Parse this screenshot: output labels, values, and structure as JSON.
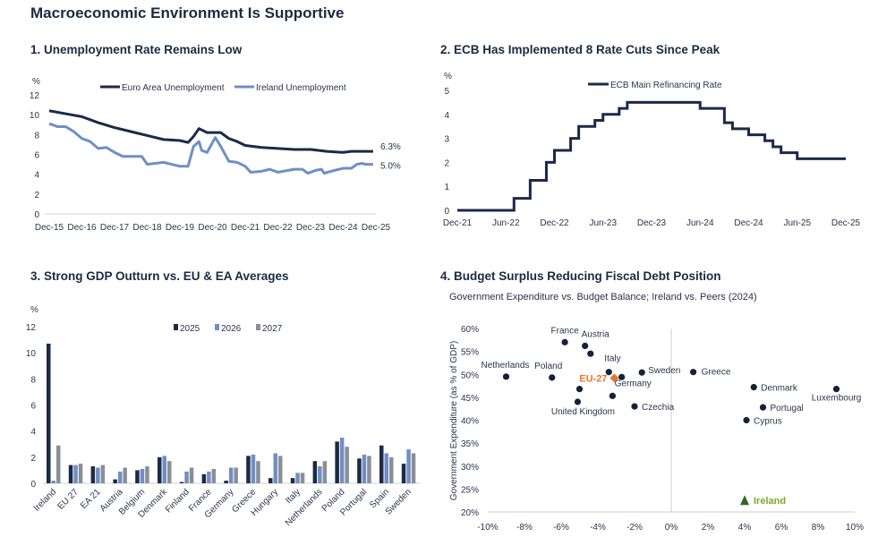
{
  "page_title": "Macroeconomic Environment Is Supportive",
  "colors": {
    "navy": "#1b2a47",
    "light_blue": "#6f8fc4",
    "grey": "#8a8f96",
    "orange": "#e8772e",
    "green": "#2e6b1f",
    "ireland_label": "#7aaa2e"
  },
  "chart_data": [
    {
      "type": "line",
      "title": "1. Unemployment Rate Remains Low",
      "ylabel": "%",
      "ylim": [
        0,
        12
      ],
      "yticks": [
        "0",
        "2",
        "4",
        "6",
        "8",
        "10",
        "12"
      ],
      "xticks": [
        "Dec-15",
        "Dec-16",
        "Dec-17",
        "Dec-18",
        "Dec-19",
        "Dec-20",
        "Dec-21",
        "Dec-22",
        "Dec-23",
        "Dec-24",
        "Dec-25"
      ],
      "legend": "top",
      "series": [
        {
          "name": "Euro Area Unemployment",
          "color": "#1b2a47",
          "end_label": "6.3%",
          "points": [
            [
              "2015-12",
              10.4
            ],
            [
              "2016-06",
              10.1
            ],
            [
              "2016-12",
              9.8
            ],
            [
              "2017-06",
              9.2
            ],
            [
              "2017-12",
              8.7
            ],
            [
              "2018-06",
              8.3
            ],
            [
              "2018-12",
              7.9
            ],
            [
              "2019-06",
              7.5
            ],
            [
              "2019-12",
              7.4
            ],
            [
              "2020-03",
              7.2
            ],
            [
              "2020-05",
              7.8
            ],
            [
              "2020-07",
              8.6
            ],
            [
              "2020-10",
              8.2
            ],
            [
              "2021-03",
              8.2
            ],
            [
              "2021-06",
              7.6
            ],
            [
              "2021-09",
              7.3
            ],
            [
              "2021-12",
              6.9
            ],
            [
              "2022-06",
              6.7
            ],
            [
              "2022-12",
              6.6
            ],
            [
              "2023-06",
              6.5
            ],
            [
              "2023-12",
              6.5
            ],
            [
              "2024-06",
              6.3
            ],
            [
              "2024-12",
              6.2
            ],
            [
              "2025-03",
              6.3
            ],
            [
              "2025-11",
              6.3
            ]
          ]
        },
        {
          "name": "Ireland Unemployment",
          "color": "#6f8fc4",
          "end_label": "5.0%",
          "points": [
            [
              "2015-12",
              9.1
            ],
            [
              "2016-03",
              8.8
            ],
            [
              "2016-06",
              8.8
            ],
            [
              "2016-09",
              8.3
            ],
            [
              "2016-12",
              7.6
            ],
            [
              "2017-03",
              7.3
            ],
            [
              "2017-06",
              6.6
            ],
            [
              "2017-09",
              6.7
            ],
            [
              "2017-12",
              6.2
            ],
            [
              "2018-03",
              5.8
            ],
            [
              "2018-06",
              5.8
            ],
            [
              "2018-10",
              5.8
            ],
            [
              "2018-12",
              5.0
            ],
            [
              "2019-06",
              5.2
            ],
            [
              "2019-12",
              4.8
            ],
            [
              "2020-03",
              4.8
            ],
            [
              "2020-05",
              6.8
            ],
            [
              "2020-07",
              7.3
            ],
            [
              "2020-08",
              6.4
            ],
            [
              "2020-10",
              6.2
            ],
            [
              "2021-01",
              7.7
            ],
            [
              "2021-03",
              6.8
            ],
            [
              "2021-06",
              5.3
            ],
            [
              "2021-09",
              5.2
            ],
            [
              "2021-12",
              4.8
            ],
            [
              "2022-02",
              4.2
            ],
            [
              "2022-06",
              4.3
            ],
            [
              "2022-09",
              4.5
            ],
            [
              "2022-12",
              4.2
            ],
            [
              "2023-06",
              4.5
            ],
            [
              "2023-09",
              4.5
            ],
            [
              "2023-11",
              4.1
            ],
            [
              "2024-02",
              4.4
            ],
            [
              "2024-04",
              4.5
            ],
            [
              "2024-05",
              4.1
            ],
            [
              "2024-09",
              4.4
            ],
            [
              "2024-12",
              4.6
            ],
            [
              "2025-03",
              4.6
            ],
            [
              "2025-05",
              5.0
            ],
            [
              "2025-07",
              5.1
            ],
            [
              "2025-08",
              5.0
            ],
            [
              "2025-11",
              5.0
            ]
          ]
        }
      ]
    },
    {
      "type": "line",
      "title": "2. ECB Has Implemented 8 Rate Cuts Since Peak",
      "ylabel": "%",
      "ylim": [
        0,
        5
      ],
      "yticks": [
        "0",
        "1",
        "2",
        "3",
        "4",
        "5"
      ],
      "xticks": [
        "Dec-21",
        "Jun-22",
        "Dec-22",
        "Jun-23",
        "Dec-23",
        "Jun-24",
        "Dec-24",
        "Jun-25",
        "Dec-25"
      ],
      "legend": "top",
      "series": [
        {
          "name": "ECB Main Refinancing Rate",
          "color": "#1b2a47",
          "step": true,
          "points": [
            [
              "2021-12",
              0
            ],
            [
              "2022-07",
              0.5
            ],
            [
              "2022-09",
              1.25
            ],
            [
              "2022-11",
              2.0
            ],
            [
              "2022-12",
              2.5
            ],
            [
              "2023-02",
              3.0
            ],
            [
              "2023-03",
              3.5
            ],
            [
              "2023-05",
              3.75
            ],
            [
              "2023-06",
              4.0
            ],
            [
              "2023-08",
              4.25
            ],
            [
              "2023-09",
              4.5
            ],
            [
              "2024-06",
              4.25
            ],
            [
              "2024-09",
              3.65
            ],
            [
              "2024-10",
              3.4
            ],
            [
              "2024-12",
              3.15
            ],
            [
              "2025-02",
              2.9
            ],
            [
              "2025-03",
              2.65
            ],
            [
              "2025-04",
              2.4
            ],
            [
              "2025-06",
              2.15
            ],
            [
              "2025-12",
              2.15
            ]
          ]
        }
      ]
    },
    {
      "type": "bar",
      "title": "3. Strong GDP Outturn vs. EU & EA Averages",
      "ylabel": "%",
      "ylim": [
        0,
        12
      ],
      "yticks": [
        "0",
        "2",
        "4",
        "6",
        "8",
        "10",
        "12"
      ],
      "legend": "top",
      "categories": [
        "Ireland",
        "EU 27",
        "EA 21",
        "Austria",
        "Belgium",
        "Denmark",
        "Finland",
        "France",
        "Germany",
        "Greece",
        "Hungary",
        "Italy",
        "Netherlands",
        "Poland",
        "Portugal",
        "Spain",
        "Sweden"
      ],
      "series": [
        {
          "name": "2025",
          "color": "#1b2a47",
          "values": [
            10.7,
            1.4,
            1.3,
            0.3,
            1.0,
            2.0,
            0.1,
            0.7,
            0.2,
            2.1,
            0.4,
            0.4,
            1.7,
            3.2,
            1.9,
            2.9,
            1.5
          ]
        },
        {
          "name": "2026",
          "color": "#6f8fc4",
          "values": [
            0.2,
            1.4,
            1.2,
            0.9,
            1.1,
            2.1,
            0.9,
            0.9,
            1.2,
            2.2,
            2.3,
            0.8,
            1.3,
            3.5,
            2.2,
            2.3,
            2.6
          ]
        },
        {
          "name": "2027",
          "color": "#8a8f96",
          "values": [
            2.9,
            1.5,
            1.4,
            1.2,
            1.3,
            1.7,
            1.2,
            1.1,
            1.2,
            1.7,
            2.1,
            0.8,
            1.7,
            2.8,
            2.1,
            2.0,
            2.3
          ]
        }
      ]
    },
    {
      "type": "scatter",
      "title": "4. Budget Surplus Reducing Fiscal Debt Position",
      "subtitle": "Government Expenditure vs. Budget Balance; Ireland vs. Peers (2024)",
      "ylabel": "Government Expenditure (as % of GDP)",
      "xlim": [
        -10,
        10
      ],
      "ylim": [
        20,
        60
      ],
      "xticks": [
        "-10%",
        "-8%",
        "-6%",
        "-4%",
        "-2%",
        "0%",
        "2%",
        "4%",
        "6%",
        "8%",
        "10%"
      ],
      "yticks": [
        "20%",
        "25%",
        "30%",
        "35%",
        "40%",
        "45%",
        "50%",
        "55%",
        "60%"
      ],
      "points": [
        {
          "label": "Netherlands",
          "x": -9.0,
          "y": 49.5
        },
        {
          "label": "Poland",
          "x": -6.5,
          "y": 49.3
        },
        {
          "label": "France",
          "x": -5.8,
          "y": 57.0
        },
        {
          "label": "Austria",
          "x": -4.7,
          "y": 56.2
        },
        {
          "label": "",
          "x": -4.4,
          "y": 54.5
        },
        {
          "label": "Italy",
          "x": -3.4,
          "y": 50.5
        },
        {
          "label": "",
          "x": -5.0,
          "y": 46.8
        },
        {
          "label": "United Kingdom",
          "x": -5.1,
          "y": 44.0
        },
        {
          "label": "",
          "x": -3.2,
          "y": 45.3
        },
        {
          "label": "Germany",
          "x": -2.7,
          "y": 49.4
        },
        {
          "label": "Sweden",
          "x": -1.6,
          "y": 50.4
        },
        {
          "label": "Czechia",
          "x": -2.0,
          "y": 43.0
        },
        {
          "label": "Greece",
          "x": 1.2,
          "y": 50.5
        },
        {
          "label": "Denmark",
          "x": 4.5,
          "y": 47.2
        },
        {
          "label": "Luxembourg",
          "x": 9.0,
          "y": 46.8
        },
        {
          "label": "Portugal",
          "x": 5.0,
          "y": 42.8
        },
        {
          "label": "Cyprus",
          "x": 4.1,
          "y": 40.0
        },
        {
          "label": "EU-27",
          "x": -3.1,
          "y": 49.2,
          "marker": "diamond",
          "color": "#e8772e"
        },
        {
          "label": "Ireland",
          "x": 4.0,
          "y": 22.5,
          "marker": "triangle",
          "color": "#2e6b1f",
          "label_color": "#7aaa2e"
        }
      ]
    }
  ]
}
